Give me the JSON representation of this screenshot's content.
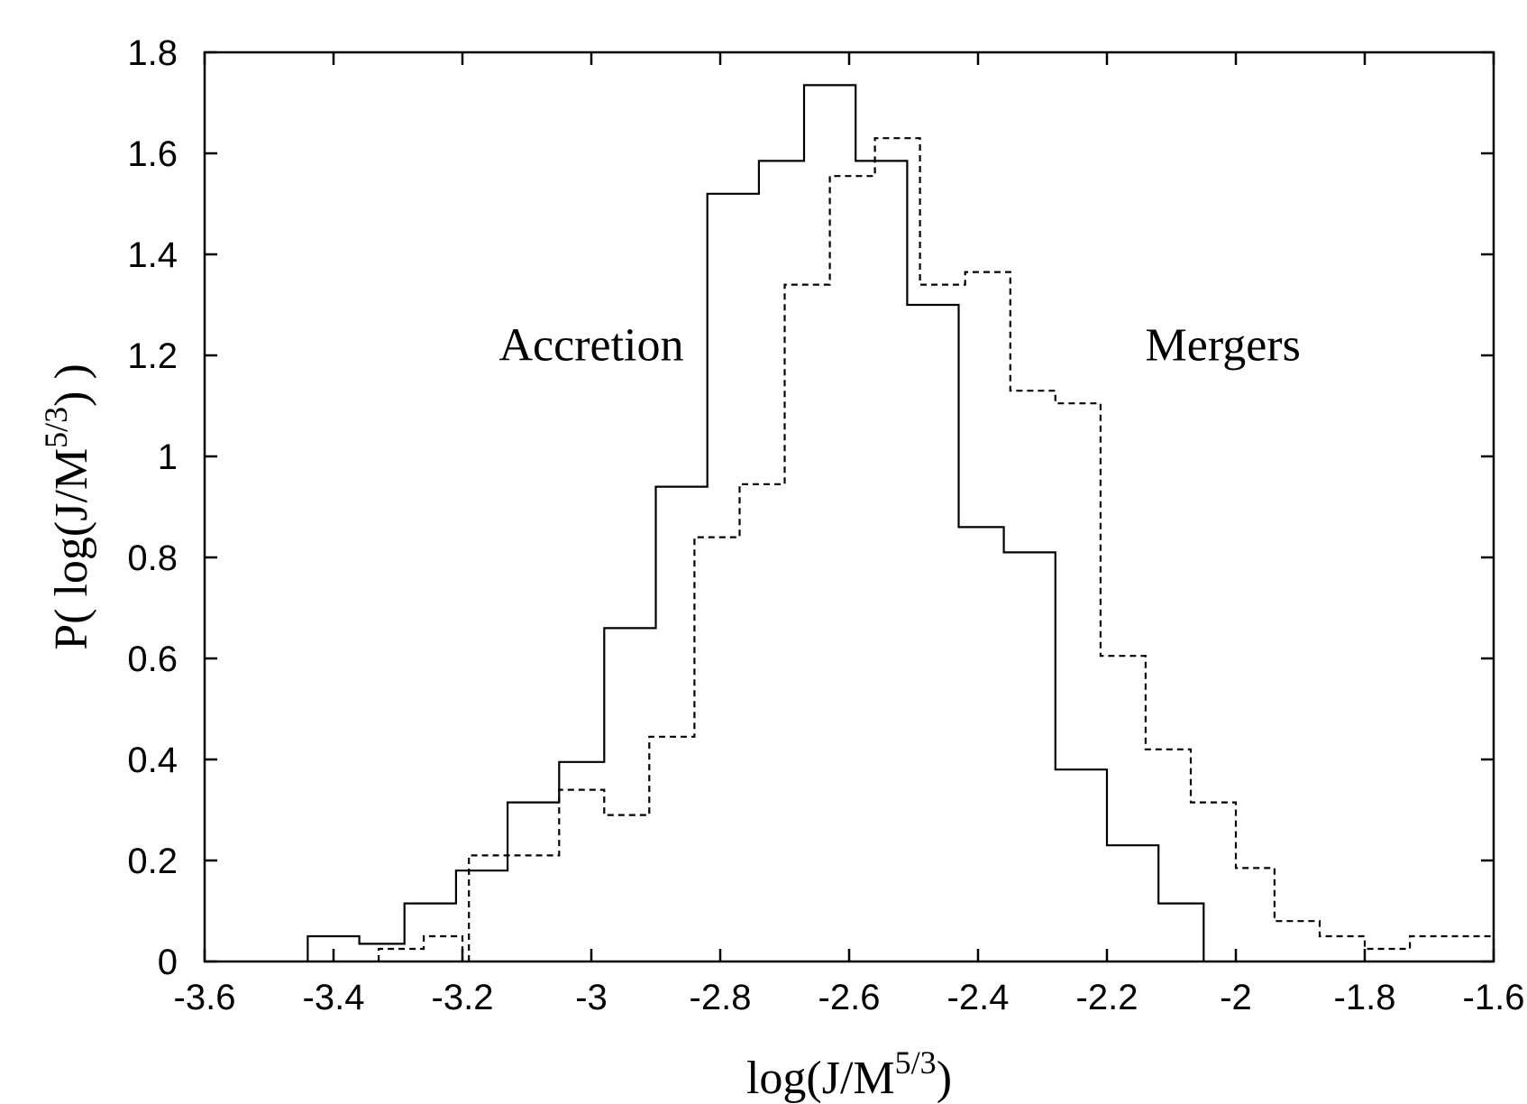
{
  "chart_data": {
    "type": "histogram-step",
    "xlabel": {
      "base": "log(J/M",
      "sup": "5/3",
      "close": ")"
    },
    "ylabel": {
      "base": "P( log(J/M",
      "sup": "5/3",
      "close": ") )"
    },
    "xlim": [
      -3.6,
      -1.6
    ],
    "ylim": [
      0,
      1.8
    ],
    "x_ticks": [
      -3.6,
      -3.4,
      -3.2,
      -3.0,
      -2.8,
      -2.6,
      -2.4,
      -2.2,
      -2.0,
      -1.8,
      -1.6
    ],
    "x_tick_labels": [
      "-3.6",
      "-3.4",
      "-3.2",
      "-3",
      "-2.8",
      "-2.6",
      "-2.4",
      "-2.2",
      "-2",
      "-1.8",
      "-1.6"
    ],
    "y_ticks": [
      0,
      0.2,
      0.4,
      0.6,
      0.8,
      1.0,
      1.2,
      1.4,
      1.6,
      1.8
    ],
    "y_tick_labels": [
      "0",
      "0.2",
      "0.4",
      "0.6",
      "0.8",
      "1",
      "1.2",
      "1.4",
      "1.6",
      "1.8"
    ],
    "annotations": [
      {
        "text": "Accretion",
        "x": -3.0,
        "y": 1.19
      },
      {
        "text": "Mergers",
        "x": -2.02,
        "y": 1.19
      }
    ],
    "series": [
      {
        "id": "accretion",
        "style": "solid",
        "color": "#000000",
        "bin_edges": [
          -3.44,
          -3.36,
          -3.29,
          -3.21,
          -3.13,
          -3.05,
          -2.98,
          -2.9,
          -2.82,
          -2.74,
          -2.67,
          -2.59,
          -2.51,
          -2.43,
          -2.36,
          -2.28,
          -2.2,
          -2.12,
          -2.05
        ],
        "values": [
          0.05,
          0.035,
          0.115,
          0.18,
          0.315,
          0.395,
          0.66,
          0.94,
          1.52,
          1.585,
          1.735,
          1.585,
          1.3,
          0.86,
          0.81,
          0.38,
          0.23,
          0.115
        ]
      },
      {
        "id": "mergers",
        "style": "dashed",
        "color": "#000000",
        "bin_edges": [
          -3.33,
          -3.26,
          -3.2,
          -3.19,
          -3.05,
          -2.98,
          -2.91,
          -2.84,
          -2.77,
          -2.7,
          -2.63,
          -2.56,
          -2.49,
          -2.42,
          -2.35,
          -2.28,
          -2.21,
          -2.14,
          -2.07,
          -2.0,
          -1.94,
          -1.87,
          -1.8,
          -1.73,
          -1.66,
          -1.6
        ],
        "values": [
          0.025,
          0.05,
          null,
          0.21,
          0.34,
          0.29,
          0.445,
          0.84,
          0.945,
          1.34,
          1.555,
          1.63,
          1.34,
          1.365,
          1.13,
          1.105,
          0.605,
          0.42,
          0.315,
          0.185,
          0.08,
          0.05,
          0.025,
          0.05,
          0.05
        ]
      }
    ]
  }
}
